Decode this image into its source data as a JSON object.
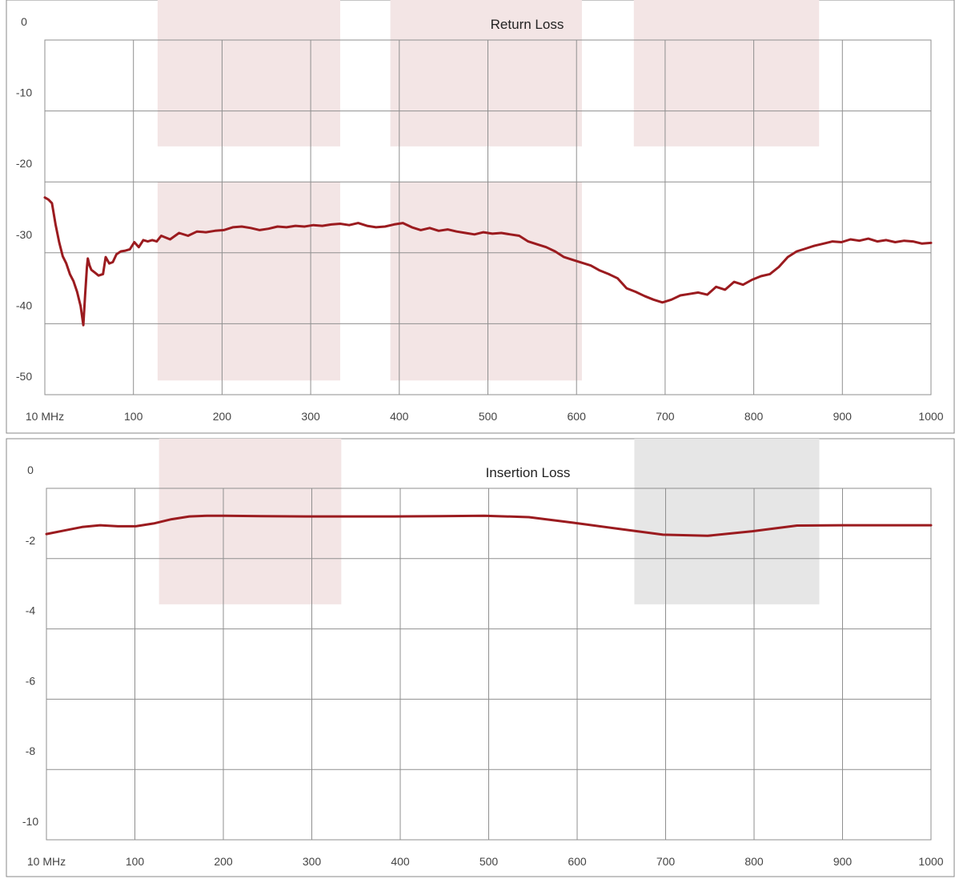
{
  "chart_data": [
    {
      "type": "line",
      "title": "Return Loss",
      "xlabel": "",
      "ylabel": "",
      "xlim": [
        10,
        1000
      ],
      "ylim": [
        -50,
        0
      ],
      "x_tick_labels": [
        "10 MHz",
        "100",
        "200",
        "300",
        "400",
        "500",
        "600",
        "700",
        "800",
        "900",
        "1000"
      ],
      "y_tick_labels": [
        "0",
        "-10",
        "-20",
        "-30",
        "-40",
        "-50"
      ],
      "grid": true,
      "legend": "none",
      "line_color": "#9B1B1F",
      "band_color": "#F3E5E5",
      "bands": [
        {
          "x": [
            136,
            340
          ],
          "y": [
            0,
            -15
          ]
        },
        {
          "x": [
            136,
            340
          ],
          "y": [
            -20,
            -48
          ]
        },
        {
          "x": [
            396,
            610
          ],
          "y": [
            0,
            -15
          ]
        },
        {
          "x": [
            396,
            610
          ],
          "y": [
            -20,
            -48
          ]
        },
        {
          "x": [
            668,
            875
          ],
          "y": [
            0,
            -15
          ]
        }
      ],
      "series": [
        {
          "x": [
            10,
            14,
            18,
            22,
            26,
            30,
            34,
            38,
            42,
            46,
            50,
            53,
            55,
            57,
            58,
            60,
            62,
            66,
            70,
            75,
            78,
            82,
            86,
            90,
            95,
            100,
            105,
            110,
            115,
            120,
            125,
            130,
            135,
            140,
            150,
            160,
            170,
            180,
            190,
            200,
            210,
            220,
            230,
            240,
            250,
            260,
            270,
            280,
            290,
            300,
            310,
            320,
            330,
            340,
            350,
            360,
            370,
            380,
            390,
            400,
            410,
            420,
            430,
            440,
            450,
            460,
            470,
            480,
            490,
            500,
            510,
            520,
            530,
            540,
            550,
            560,
            570,
            580,
            590,
            600,
            610,
            620,
            630,
            640,
            650,
            660,
            670,
            680,
            690,
            700,
            710,
            720,
            730,
            740,
            750,
            760,
            770,
            780,
            790,
            800,
            810,
            820,
            830,
            840,
            850,
            860,
            870,
            880,
            890,
            900,
            910,
            920,
            930,
            940,
            950,
            960,
            970,
            980,
            990,
            1000
          ],
          "y": [
            -22.2,
            -22.5,
            -23,
            -26,
            -28.5,
            -30.5,
            -31.5,
            -33,
            -34,
            -35.5,
            -37.5,
            -40.2,
            -36,
            -32,
            -30.8,
            -31.8,
            -32.4,
            -32.8,
            -33.2,
            -33,
            -30.6,
            -31.5,
            -31.3,
            -30.2,
            -29.8,
            -29.7,
            -29.5,
            -28.5,
            -29.2,
            -28.2,
            -28.4,
            -28.2,
            -28.4,
            -27.6,
            -28.1,
            -27.2,
            -27.6,
            -27,
            -27.1,
            -26.9,
            -26.8,
            -26.4,
            -26.3,
            -26.5,
            -26.8,
            -26.6,
            -26.3,
            -26.4,
            -26.2,
            -26.3,
            -26.1,
            -26.2,
            -26.0,
            -25.9,
            -26.1,
            -25.8,
            -26.2,
            -26.4,
            -26.3,
            -26.0,
            -25.8,
            -26.4,
            -26.8,
            -26.5,
            -26.9,
            -26.7,
            -27.0,
            -27.2,
            -27.4,
            -27.1,
            -27.3,
            -27.2,
            -27.4,
            -27.6,
            -28.4,
            -28.8,
            -29.2,
            -29.8,
            -30.6,
            -31.0,
            -31.4,
            -31.8,
            -32.5,
            -33.0,
            -33.6,
            -35.0,
            -35.5,
            -36.1,
            -36.6,
            -37.0,
            -36.6,
            -36.0,
            -35.8,
            -35.6,
            -35.9,
            -34.8,
            -35.2,
            -34.1,
            -34.5,
            -33.8,
            -33.3,
            -33.0,
            -32.0,
            -30.6,
            -29.8,
            -29.4,
            -29.0,
            -28.7,
            -28.4,
            -28.5,
            -28.1,
            -28.3,
            -28.0,
            -28.4,
            -28.2,
            -28.5,
            -28.3,
            -28.4,
            -28.7,
            -28.6
          ]
        }
      ]
    },
    {
      "type": "line",
      "title": "Insertion Loss",
      "xlabel": "",
      "ylabel": "",
      "xlim": [
        10,
        1000
      ],
      "ylim": [
        -10,
        0
      ],
      "x_tick_labels": [
        "10 MHz",
        "100",
        "200",
        "300",
        "400",
        "500",
        "600",
        "700",
        "800",
        "900",
        "1000"
      ],
      "y_tick_labels": [
        "0",
        "-2",
        "-4",
        "-6",
        "-8",
        "-10"
      ],
      "grid": true,
      "legend": "none",
      "line_color": "#9B1B1F",
      "bands": [
        {
          "x": [
            136,
            340
          ],
          "y": [
            0,
            -3.3
          ],
          "color": "#F3E5E5"
        },
        {
          "x": [
            668,
            875
          ],
          "y": [
            0,
            -3.3
          ],
          "color": "#E6E6E6"
        }
      ],
      "series": [
        {
          "x": [
            10,
            30,
            50,
            70,
            90,
            110,
            130,
            150,
            170,
            190,
            210,
            250,
            300,
            350,
            400,
            450,
            500,
            550,
            600,
            650,
            700,
            750,
            800,
            850,
            900,
            950,
            1000
          ],
          "y": [
            -1.3,
            -1.2,
            -1.1,
            -1.05,
            -1.08,
            -1.08,
            -1.0,
            -0.88,
            -0.8,
            -0.78,
            -0.78,
            -0.79,
            -0.8,
            -0.8,
            -0.8,
            -0.79,
            -0.78,
            -0.82,
            -0.98,
            -1.15,
            -1.32,
            -1.35,
            -1.22,
            -1.06,
            -1.05,
            -1.05,
            -1.05
          ]
        }
      ]
    }
  ]
}
